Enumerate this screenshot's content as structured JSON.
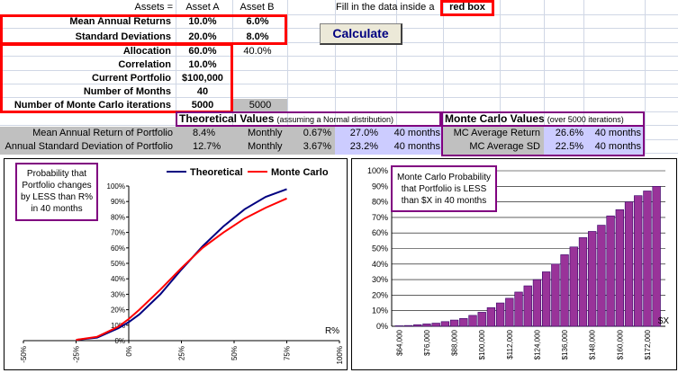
{
  "header": {
    "assets_label": "Assets =",
    "asset_a": "Asset A",
    "asset_b": "Asset B",
    "instruction": "Fill in the data inside a",
    "red_box_label": "red box"
  },
  "inputs": {
    "mean_returns": {
      "label": "Mean Annual Returns",
      "a": "10.0%",
      "b": "6.0%"
    },
    "std_dev": {
      "label": "Standard Deviations",
      "a": "20.0%",
      "b": "8.0%"
    },
    "allocation": {
      "label": "Allocation",
      "a": "60.0%",
      "b": "40.0%"
    },
    "correlation": {
      "label": "Correlation",
      "a": "10.0%"
    },
    "portfolio": {
      "label": "Current Portfolio",
      "a": "$100,000"
    },
    "months": {
      "label": "Number of Months",
      "a": "40"
    },
    "iterations": {
      "label": "Number of Monte Carlo iterations",
      "a": "5000",
      "b": "5000"
    }
  },
  "calculate_label": "Calculate",
  "theoretical": {
    "title": "Theoretical Values",
    "subtitle": "(assuming a Normal distribution)",
    "row1": {
      "label": "Mean Annual Return of Portfolio",
      "annual": "8.4%",
      "period": "Monthly",
      "monthly": "0.67%",
      "horizon_value": "27.0%",
      "horizon": "40 months"
    },
    "row2": {
      "label": "Annual Standard Deviation of Portfolio",
      "annual": "12.7%",
      "period": "Monthly",
      "monthly": "3.67%",
      "horizon_value": "23.2%",
      "horizon": "40 months"
    }
  },
  "monte_carlo": {
    "title": "Monte Carlo Values",
    "subtitle": "(over 5000 iterations)",
    "row1": {
      "label": "MC Average Return",
      "value": "26.6%",
      "horizon": "40 months"
    },
    "row2": {
      "label": "MC Average SD",
      "value": "22.5%",
      "horizon": "40 months"
    }
  },
  "left_chart": {
    "callout": [
      "Probability that",
      "Portfolio changes",
      "by LESS than R%",
      "in 40 months"
    ],
    "legend": [
      "Theoretical",
      "Monte Carlo"
    ],
    "y_ticks": [
      "0%",
      "10%",
      "20%",
      "30%",
      "40%",
      "50%",
      "60%",
      "70%",
      "80%",
      "90%",
      "100%"
    ],
    "x_ticks": [
      "-50%",
      "-25%",
      "0%",
      "25%",
      "50%",
      "75%",
      "100%"
    ],
    "x_unit": "R%",
    "colors": {
      "theoretical": "#000080",
      "monte_carlo": "#ff0000"
    }
  },
  "right_chart": {
    "callout": [
      "Monte Carlo Probability",
      "that Portfolio is LESS",
      "than $X in 40 months"
    ],
    "y_ticks": [
      "0%",
      "10%",
      "20%",
      "30%",
      "40%",
      "50%",
      "60%",
      "70%",
      "80%",
      "90%",
      "100%"
    ],
    "x_unit": "$X",
    "bar_color": "#993399"
  },
  "chart_data": [
    {
      "type": "line",
      "xlabel": "R%",
      "ylabel": "",
      "xlim": [
        -50,
        100
      ],
      "ylim": [
        0,
        100
      ],
      "series": [
        {
          "name": "Theoretical",
          "x": [
            -25,
            -15,
            -5,
            0,
            5,
            15,
            25,
            35,
            45,
            55,
            65,
            75
          ],
          "y": [
            0.5,
            2,
            8,
            12,
            17,
            30,
            46,
            61,
            74,
            85,
            93,
            98
          ]
        },
        {
          "name": "Monte Carlo",
          "x": [
            -25,
            -15,
            -5,
            0,
            5,
            15,
            25,
            35,
            45,
            55,
            65,
            75
          ],
          "y": [
            0.5,
            2.5,
            9,
            14,
            20,
            33,
            47,
            60,
            70,
            79,
            86,
            92
          ]
        }
      ]
    },
    {
      "type": "bar",
      "categories": [
        "$64,000",
        "$68,000",
        "$72,000",
        "$76,000",
        "$80,000",
        "$84,000",
        "$88,000",
        "$92,000",
        "$96,000",
        "$100,000",
        "$104,000",
        "$108,000",
        "$112,000",
        "$116,000",
        "$120,000",
        "$124,000",
        "$128,000",
        "$132,000",
        "$136,000",
        "$140,000",
        "$144,000",
        "$148,000",
        "$152,000",
        "$156,000",
        "$160,000",
        "$164,000",
        "$168,000",
        "$172,000",
        "$176,000"
      ],
      "tick_labels": [
        "$64,000",
        "$76,000",
        "$88,000",
        "$100,000",
        "$112,000",
        "$124,000",
        "$136,000",
        "$148,000",
        "$160,000",
        "$172,000"
      ],
      "values": [
        0.3,
        0.5,
        1,
        1.5,
        2,
        3,
        4,
        5,
        7,
        9,
        12,
        15,
        18,
        22,
        26,
        30,
        35,
        40,
        46,
        51,
        57,
        61,
        65,
        71,
        75,
        80,
        84,
        87,
        90
      ],
      "ylim": [
        0,
        100
      ],
      "xlabel": "$X",
      "ylabel": ""
    }
  ]
}
